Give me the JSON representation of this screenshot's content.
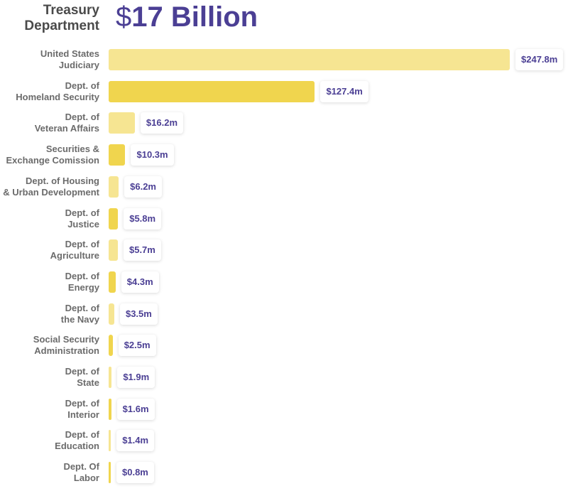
{
  "header": {
    "title": "Treasury\nDepartment",
    "dollar": "$",
    "amount": "17 Billion"
  },
  "colors": {
    "light": "#f6e592",
    "dark": "#f0d54e",
    "accent": "#4b3f94"
  },
  "chart_data": {
    "type": "bar",
    "orientation": "horizontal",
    "title": "Treasury Department $17 Billion",
    "categories": [
      "United States\nJudiciary",
      "Dept. of\nHomeland Security",
      "Dept. of\nVeteran Affairs",
      "Securities &\nExchange Comission",
      "Dept. of Housing\n& Urban Development",
      "Dept. of\nJustice",
      "Dept. of\nAgriculture",
      "Dept. of\nEnergy",
      "Dept. of\nthe Navy",
      "Social Security\nAdministration",
      "Dept. of\nState",
      "Dept. of\nInterior",
      "Dept. of\nEducation",
      "Dept. Of\nLabor"
    ],
    "values": [
      247.8,
      127.4,
      16.2,
      10.3,
      6.2,
      5.8,
      5.7,
      4.3,
      3.5,
      2.5,
      1.9,
      1.6,
      1.4,
      0.8
    ],
    "labels": [
      "$247.8m",
      "$127.4m",
      "$16.2m",
      "$10.3m",
      "$6.2m",
      "$5.8m",
      "$5.7m",
      "$4.3m",
      "$3.5m",
      "$2.5m",
      "$1.9m",
      "$1.6m",
      "$1.4m",
      "$0.8m"
    ],
    "unit": "$ millions",
    "grid": false
  }
}
